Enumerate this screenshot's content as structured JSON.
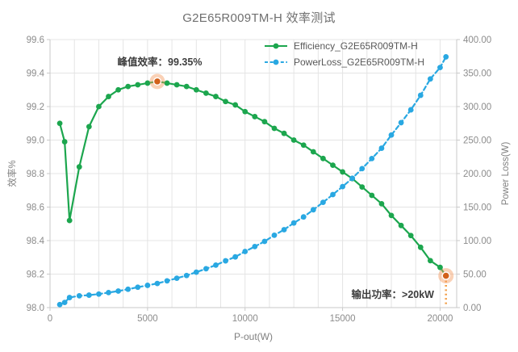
{
  "title": "G2E65R009TM-H 效率测试",
  "chart_data": {
    "type": "line",
    "title": "G2E65R009TM-H 效率测试",
    "xlabel": "P-out(W)",
    "ylabel_left": "效率%",
    "ylabel_right": "Power Loss(W)",
    "xlim": [
      0,
      20850
    ],
    "x_grid_step": 1250,
    "x_ticks": [
      "0",
      "5000",
      "10000",
      "15000",
      "20000"
    ],
    "ylim_left": [
      98.0,
      99.6
    ],
    "y_ticks_left": [
      "99.6",
      "99.4",
      "99.2",
      "99.0",
      "98.8",
      "98.6",
      "98.4",
      "98.2",
      "98.0"
    ],
    "ylim_right": [
      0,
      400
    ],
    "y_ticks_right": [
      "400.00",
      "350.00",
      "300.00",
      "250.00",
      "200.00",
      "150.00",
      "100.00",
      "50.00",
      "0.00"
    ],
    "grid": true,
    "legend_position": "top-right-inside",
    "x": [
      500,
      750,
      1000,
      1500,
      2000,
      2500,
      3000,
      3500,
      4000,
      4500,
      5000,
      5500,
      6000,
      6500,
      7000,
      7500,
      8000,
      8500,
      9000,
      9500,
      10000,
      10500,
      11000,
      11500,
      12000,
      12500,
      13000,
      13500,
      14000,
      14500,
      15000,
      15500,
      16000,
      16500,
      17000,
      17500,
      18000,
      18500,
      19000,
      19500,
      20000,
      20300
    ],
    "series": [
      {
        "name": "Efficiency_G2E65R009TM-H",
        "axis": "left",
        "color": "#1CA64E",
        "style": "solid",
        "values": [
          99.1,
          98.99,
          98.52,
          98.84,
          99.08,
          99.2,
          99.26,
          99.3,
          99.32,
          99.33,
          99.34,
          99.35,
          99.34,
          99.33,
          99.32,
          99.3,
          99.28,
          99.26,
          99.23,
          99.21,
          99.17,
          99.14,
          99.11,
          99.07,
          99.04,
          99.0,
          98.97,
          98.93,
          98.89,
          98.85,
          98.81,
          98.77,
          98.72,
          98.67,
          98.62,
          98.55,
          98.49,
          98.43,
          98.36,
          98.28,
          98.24,
          98.19
        ]
      },
      {
        "name": "PowerLoss_G2E65R009TM-H",
        "axis": "right",
        "color": "#29A8E2",
        "style": "dashed",
        "values": [
          4.5,
          7.7,
          15.0,
          17.6,
          18.6,
          20.2,
          22.4,
          24.7,
          27.4,
          30.4,
          33.2,
          36.0,
          39.9,
          43.8,
          47.9,
          52.9,
          58.0,
          63.4,
          69.8,
          75.7,
          83.7,
          91.1,
          98.8,
          108.0,
          116.3,
          126.3,
          135.3,
          146.0,
          157.1,
          168.7,
          180.6,
          193.0,
          207.4,
          222.4,
          237.9,
          257.5,
          276.0,
          295.1,
          316.8,
          341.3,
          358.3,
          374.2
        ]
      }
    ],
    "annotations": [
      {
        "type": "point-highlight",
        "series": "Efficiency_G2E65R009TM-H",
        "x": 5500,
        "y": 99.35,
        "label": "峰值效率：99.35%",
        "dropline": false
      },
      {
        "type": "point-highlight",
        "series": "Efficiency_G2E65R009TM-H",
        "x": 20300,
        "y": 98.19,
        "label": "输出功率：>20kW",
        "dropline": true
      }
    ],
    "annotation_style": {
      "dot_color": "#D2601A",
      "halo_color": "rgba(243,152,93,0.45)",
      "ring_color": "#FFFFFF",
      "dropline_color": "#F2A04B"
    },
    "grid_color": "#E4E4E4",
    "axis_color": "#C9C9C9",
    "tick_text_color": "#8C8C8C"
  }
}
